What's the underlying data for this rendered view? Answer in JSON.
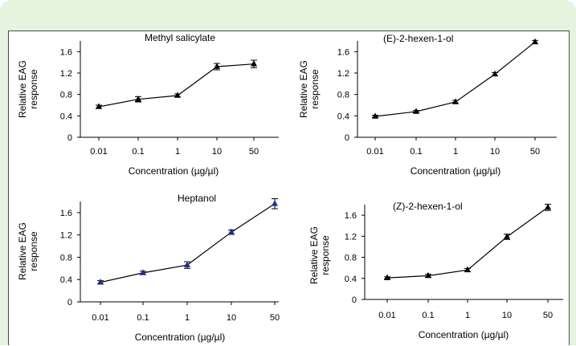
{
  "chart_data": [
    {
      "type": "line",
      "title": "Methyl salicylate",
      "xlabel": "Concentration (µg/µl)",
      "ylabel": "Relative EAG response",
      "categories": [
        "0.01",
        "0.1",
        "1",
        "10",
        "50"
      ],
      "values": [
        0.57,
        0.71,
        0.78,
        1.32,
        1.37
      ],
      "errors": [
        0.03,
        0.05,
        0.03,
        0.06,
        0.07
      ],
      "yticks": [
        "0",
        "0.4",
        "0.8",
        "1.2",
        "1.6"
      ],
      "ylim": [
        0,
        1.8
      ],
      "grid": false,
      "marker": "triangle",
      "color": "#000000"
    },
    {
      "type": "line",
      "title": "(E)-2-hexen-1-ol",
      "xlabel": "Concentration (µg/µl)",
      "ylabel": "Relative EAG response",
      "categories": [
        "0.01",
        "0.1",
        "1",
        "10",
        "50"
      ],
      "values": [
        0.39,
        0.48,
        0.66,
        1.18,
        1.78
      ],
      "errors": [
        0.02,
        0.02,
        0.03,
        0.03,
        0.03
      ],
      "yticks": [
        "0",
        "0.4",
        "0.8",
        "1.2",
        "1.6"
      ],
      "ylim": [
        0,
        1.8
      ],
      "grid": false,
      "marker": "triangle",
      "color": "#000000"
    },
    {
      "type": "line",
      "title": "Heptanol",
      "xlabel": "Concentration (µg/µl)",
      "ylabel": "Relative EAG response",
      "categories": [
        "0.01",
        "0.1",
        "1",
        "10",
        "50"
      ],
      "values": [
        0.35,
        0.52,
        0.66,
        1.25,
        1.76
      ],
      "errors": [
        0.03,
        0.03,
        0.06,
        0.04,
        0.09
      ],
      "yticks": [
        "0",
        "0.4",
        "0.8",
        "1.2",
        "1.6"
      ],
      "ylim": [
        0,
        1.8
      ],
      "grid": false,
      "marker": "triangle",
      "color": "#1f2d8f"
    },
    {
      "type": "line",
      "title": "(Z)-2-hexen-1-ol",
      "xlabel": "Concentration (µg/µl)",
      "ylabel": "Relative EAG response",
      "categories": [
        "0.01",
        "0.1",
        "1",
        "10",
        "50"
      ],
      "values": [
        0.41,
        0.45,
        0.56,
        1.19,
        1.75
      ],
      "errors": [
        0.02,
        0.03,
        0.03,
        0.05,
        0.06
      ],
      "yticks": [
        "0",
        "0.4",
        "0.8",
        "1.2",
        "1.6"
      ],
      "ylim": [
        0,
        1.8
      ],
      "grid": false,
      "marker": "triangle",
      "color": "#000000"
    }
  ]
}
